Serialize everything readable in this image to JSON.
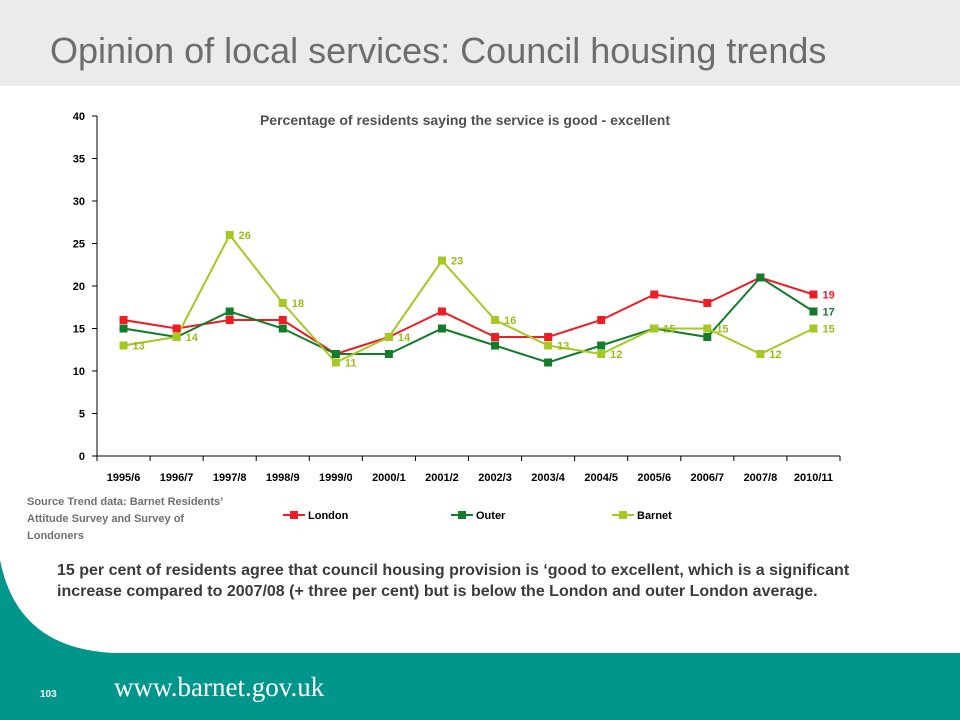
{
  "slide": {
    "title": "Opinion of local services: Council housing trends",
    "source_note": "Source Trend data: Barnet Residents’ Attitude Survey and Survey of Londoners",
    "summary": "15 per cent of residents agree that council housing provision is ‘good to excellent, which is a significant increase compared to 2007/08 (+ three per cent) but is below the London and outer London average.",
    "page_number": "103",
    "website": "www.barnet.gov.uk",
    "colors": {
      "teal": "#00968c",
      "title_bar": "#ebebeb"
    }
  },
  "chart_data": {
    "type": "line",
    "title": "Percentage of residents saying the service is good - excellent",
    "xlabel": "",
    "ylabel": "",
    "ylim": [
      0,
      40
    ],
    "yticks": [
      0,
      5,
      10,
      15,
      20,
      25,
      30,
      35,
      40
    ],
    "grid": false,
    "legend_position": "bottom",
    "categories": [
      "1995/6",
      "1996/7",
      "1997/8",
      "1998/9",
      "1999/0",
      "2000/1",
      "2001/2",
      "2002/3",
      "2003/4",
      "2004/5",
      "2005/6",
      "2006/7",
      "2007/8",
      "2010/11"
    ],
    "series": [
      {
        "name": "London",
        "color": "#ee1c23",
        "label_color": "#ee1c23",
        "values": [
          16,
          15,
          16,
          16,
          12,
          14,
          17,
          14,
          14,
          16,
          19,
          18,
          21,
          19
        ],
        "data_labels": [
          null,
          null,
          null,
          null,
          null,
          null,
          null,
          null,
          null,
          null,
          null,
          null,
          null,
          "19"
        ]
      },
      {
        "name": "Outer",
        "color": "#137b2a",
        "label_color": "#137b2a",
        "values": [
          15,
          14,
          17,
          15,
          12,
          12,
          15,
          13,
          11,
          13,
          15,
          14,
          21,
          17
        ],
        "data_labels": [
          null,
          null,
          null,
          null,
          null,
          null,
          null,
          null,
          null,
          null,
          null,
          null,
          null,
          "17"
        ]
      },
      {
        "name": "Barnet",
        "color": "#a6c823",
        "label_color": "#9bbb19",
        "values": [
          13,
          14,
          26,
          18,
          11,
          14,
          23,
          16,
          13,
          12,
          15,
          15,
          12,
          15
        ],
        "data_labels": [
          "13",
          "14",
          "26",
          "18",
          "11",
          "14",
          "23",
          "16",
          "13",
          "12",
          "15",
          "15",
          "12",
          "15"
        ]
      }
    ]
  }
}
